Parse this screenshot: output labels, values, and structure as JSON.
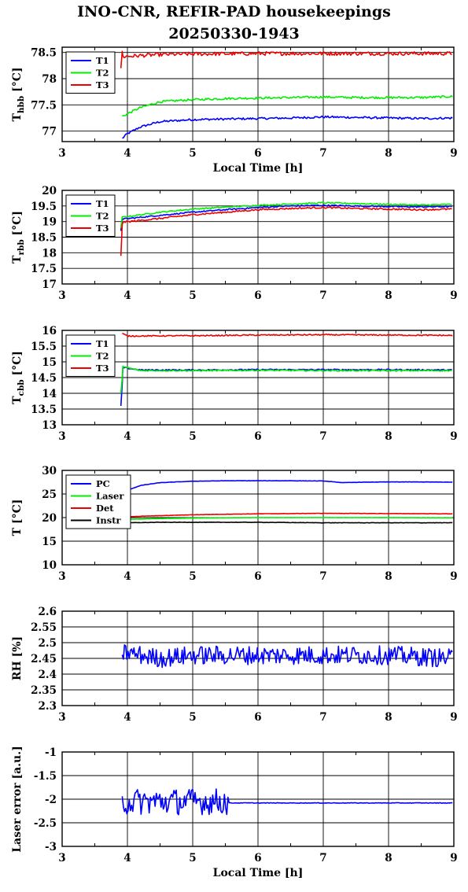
{
  "figure": {
    "title": "INO-CNR, REFIR-PAD housekeepings",
    "subtitle": "20250330-1943"
  },
  "chart_data": [
    {
      "type": "line",
      "ylabel_main": "T",
      "ylabel_sub": "hbb",
      "ylabel_unit": " [°C]",
      "xlabel": "Local Time [h]",
      "xlim": [
        3,
        9
      ],
      "ylim": [
        76.8,
        78.6
      ],
      "xticks": [
        "3",
        "4",
        "5",
        "6",
        "7",
        "8",
        "9"
      ],
      "yticks": [
        {
          "v": 77,
          "label": "77"
        },
        {
          "v": 77.5,
          "label": "77.5"
        },
        {
          "v": 78,
          "label": "78"
        },
        {
          "v": 78.5,
          "label": "78.5"
        }
      ],
      "grid": true,
      "legend": "top-left",
      "series": [
        {
          "name": "T1",
          "color": "#0000ff",
          "noise": 0.02,
          "spike": [],
          "points": [
            [
              3.92,
              76.86
            ],
            [
              4.0,
              76.95
            ],
            [
              4.2,
              77.08
            ],
            [
              4.5,
              77.18
            ],
            [
              5.0,
              77.22
            ],
            [
              5.5,
              77.23
            ],
            [
              6.0,
              77.24
            ],
            [
              6.5,
              77.25
            ],
            [
              7.0,
              77.27
            ],
            [
              7.5,
              77.26
            ],
            [
              8.0,
              77.25
            ],
            [
              8.5,
              77.24
            ],
            [
              8.98,
              77.25
            ]
          ]
        },
        {
          "name": "T2",
          "color": "#00ee00",
          "noise": 0.02,
          "spike": [],
          "points": [
            [
              3.92,
              77.28
            ],
            [
              4.0,
              77.33
            ],
            [
              4.2,
              77.45
            ],
            [
              4.5,
              77.56
            ],
            [
              5.0,
              77.6
            ],
            [
              5.5,
              77.62
            ],
            [
              6.0,
              77.63
            ],
            [
              6.5,
              77.64
            ],
            [
              7.0,
              77.65
            ],
            [
              7.5,
              77.64
            ],
            [
              8.0,
              77.64
            ],
            [
              8.5,
              77.64
            ],
            [
              8.98,
              77.66
            ]
          ]
        },
        {
          "name": "T3",
          "color": "#ee0000",
          "noise": 0.035,
          "spike": [
            [
              3.9,
              78.2
            ],
            [
              3.92,
              78.52
            ]
          ],
          "points": [
            [
              3.93,
              78.42
            ],
            [
              4.2,
              78.44
            ],
            [
              4.5,
              78.46
            ],
            [
              5.0,
              78.47
            ],
            [
              6.0,
              78.48
            ],
            [
              7.0,
              78.48
            ],
            [
              8.0,
              78.48
            ],
            [
              8.98,
              78.48
            ]
          ]
        }
      ]
    },
    {
      "type": "line",
      "ylabel_main": "T",
      "ylabel_sub": "rbb",
      "ylabel_unit": " [°C]",
      "xlabel": "",
      "xlim": [
        3,
        9
      ],
      "ylim": [
        17,
        20
      ],
      "xticks": [
        "3",
        "4",
        "5",
        "6",
        "7",
        "8",
        "9"
      ],
      "yticks": [
        {
          "v": 17,
          "label": "17"
        },
        {
          "v": 17.5,
          "label": "17.5"
        },
        {
          "v": 18,
          "label": "18"
        },
        {
          "v": 18.5,
          "label": "18.5"
        },
        {
          "v": 19,
          "label": "19"
        },
        {
          "v": 19.5,
          "label": "19.5"
        },
        {
          "v": 20,
          "label": "20"
        }
      ],
      "grid": true,
      "legend": "top-left",
      "series": [
        {
          "name": "T1",
          "color": "#0000ff",
          "noise": 0.02,
          "spike": [
            [
              3.9,
              18.7
            ],
            [
              3.92,
              19.1
            ]
          ],
          "points": [
            [
              3.93,
              19.08
            ],
            [
              4.5,
              19.2
            ],
            [
              5.0,
              19.3
            ],
            [
              5.5,
              19.38
            ],
            [
              6.0,
              19.45
            ],
            [
              6.5,
              19.5
            ],
            [
              7.0,
              19.52
            ],
            [
              7.5,
              19.5
            ],
            [
              8.0,
              19.48
            ],
            [
              8.5,
              19.47
            ],
            [
              8.98,
              19.48
            ]
          ]
        },
        {
          "name": "T2",
          "color": "#00ee00",
          "noise": 0.02,
          "spike": [
            [
              3.9,
              18.8
            ],
            [
              3.92,
              19.15
            ]
          ],
          "points": [
            [
              3.93,
              19.14
            ],
            [
              4.5,
              19.3
            ],
            [
              5.0,
              19.4
            ],
            [
              5.5,
              19.46
            ],
            [
              6.0,
              19.52
            ],
            [
              6.5,
              19.56
            ],
            [
              7.0,
              19.6
            ],
            [
              7.5,
              19.58
            ],
            [
              8.0,
              19.55
            ],
            [
              8.5,
              19.53
            ],
            [
              8.98,
              19.55
            ]
          ]
        },
        {
          "name": "T3",
          "color": "#ee0000",
          "noise": 0.025,
          "spike": [
            [
              3.9,
              17.9
            ],
            [
              3.92,
              18.9
            ]
          ],
          "points": [
            [
              3.93,
              18.98
            ],
            [
              4.5,
              19.1
            ],
            [
              5.0,
              19.22
            ],
            [
              5.5,
              19.3
            ],
            [
              6.0,
              19.38
            ],
            [
              6.5,
              19.42
            ],
            [
              7.0,
              19.45
            ],
            [
              7.5,
              19.42
            ],
            [
              8.0,
              19.4
            ],
            [
              8.5,
              19.38
            ],
            [
              8.98,
              19.4
            ]
          ]
        }
      ]
    },
    {
      "type": "line",
      "ylabel_main": "T",
      "ylabel_sub": "cbb",
      "ylabel_unit": " [°C]",
      "xlabel": "",
      "xlim": [
        3,
        9
      ],
      "ylim": [
        13,
        16
      ],
      "xticks": [
        "3",
        "4",
        "5",
        "6",
        "7",
        "8",
        "9"
      ],
      "yticks": [
        {
          "v": 13,
          "label": "13"
        },
        {
          "v": 13.5,
          "label": "13.5"
        },
        {
          "v": 14,
          "label": "14"
        },
        {
          "v": 14.5,
          "label": "14.5"
        },
        {
          "v": 15,
          "label": "15"
        },
        {
          "v": 15.5,
          "label": "15.5"
        },
        {
          "v": 16,
          "label": "16"
        }
      ],
      "grid": true,
      "legend": "top-left",
      "series": [
        {
          "name": "T1",
          "color": "#0000ff",
          "noise": 0.02,
          "spike": [
            [
              3.9,
              13.6
            ],
            [
              3.92,
              14.3
            ]
          ],
          "points": [
            [
              3.93,
              14.82
            ],
            [
              4.2,
              14.74
            ],
            [
              5.0,
              14.74
            ],
            [
              6.0,
              14.75
            ],
            [
              7.0,
              14.75
            ],
            [
              8.0,
              14.75
            ],
            [
              8.98,
              14.74
            ]
          ]
        },
        {
          "name": "T2",
          "color": "#00ee00",
          "noise": 0.02,
          "spike": [
            [
              3.9,
              14.0
            ],
            [
              3.92,
              14.5
            ]
          ],
          "points": [
            [
              3.93,
              14.85
            ],
            [
              4.2,
              14.72
            ],
            [
              5.0,
              14.72
            ],
            [
              6.0,
              14.73
            ],
            [
              7.0,
              14.72
            ],
            [
              8.0,
              14.72
            ],
            [
              8.98,
              14.72
            ]
          ]
        },
        {
          "name": "T3",
          "color": "#ee0000",
          "noise": 0.018,
          "spike": [],
          "points": [
            [
              3.92,
              15.9
            ],
            [
              4.0,
              15.82
            ],
            [
              5.0,
              15.83
            ],
            [
              6.0,
              15.85
            ],
            [
              7.0,
              15.86
            ],
            [
              8.0,
              15.85
            ],
            [
              8.98,
              15.84
            ]
          ]
        }
      ]
    },
    {
      "type": "line",
      "ylabel_main": "T [°C]",
      "ylabel_sub": "",
      "ylabel_unit": "",
      "xlabel": "",
      "xlim": [
        3,
        9
      ],
      "ylim": [
        10,
        30
      ],
      "xticks": [
        "3",
        "4",
        "5",
        "6",
        "7",
        "8",
        "9"
      ],
      "yticks": [
        {
          "v": 10,
          "label": "10"
        },
        {
          "v": 15,
          "label": "15"
        },
        {
          "v": 20,
          "label": "20"
        },
        {
          "v": 25,
          "label": "25"
        },
        {
          "v": 30,
          "label": "30"
        }
      ],
      "grid": true,
      "legend": "top-left",
      "series": [
        {
          "name": "PC",
          "color": "#0000ff",
          "noise": 0.03,
          "spike": [],
          "points": [
            [
              3.92,
              25.0
            ],
            [
              4.0,
              25.8
            ],
            [
              4.2,
              26.8
            ],
            [
              4.5,
              27.4
            ],
            [
              5.0,
              27.7
            ],
            [
              5.5,
              27.8
            ],
            [
              6.0,
              27.8
            ],
            [
              6.5,
              27.8
            ],
            [
              7.0,
              27.75
            ],
            [
              7.3,
              27.4
            ],
            [
              7.6,
              27.5
            ],
            [
              8.0,
              27.55
            ],
            [
              8.5,
              27.55
            ],
            [
              8.98,
              27.5
            ]
          ]
        },
        {
          "name": "Laser",
          "color": "#00ee00",
          "noise": 0.02,
          "spike": [],
          "points": [
            [
              3.92,
              19.6
            ],
            [
              4.5,
              19.8
            ],
            [
              5.0,
              19.9
            ],
            [
              6.0,
              20.0
            ],
            [
              7.0,
              20.0
            ],
            [
              8.0,
              20.0
            ],
            [
              8.98,
              19.95
            ]
          ]
        },
        {
          "name": "Det",
          "color": "#ee0000",
          "noise": 0.03,
          "spike": [],
          "points": [
            [
              3.92,
              20.0
            ],
            [
              4.0,
              20.2
            ],
            [
              4.5,
              20.4
            ],
            [
              5.0,
              20.6
            ],
            [
              5.5,
              20.7
            ],
            [
              6.0,
              20.8
            ],
            [
              7.0,
              20.9
            ],
            [
              8.0,
              20.85
            ],
            [
              8.98,
              20.8
            ]
          ]
        },
        {
          "name": "Instr",
          "color": "#000000",
          "noise": 0.04,
          "spike": [],
          "points": [
            [
              3.92,
              19.0
            ],
            [
              4.0,
              18.9
            ],
            [
              4.5,
              19.0
            ],
            [
              5.0,
              19.0
            ],
            [
              6.0,
              19.0
            ],
            [
              7.0,
              18.9
            ],
            [
              8.0,
              18.9
            ],
            [
              8.98,
              18.9
            ]
          ]
        }
      ]
    },
    {
      "type": "line",
      "ylabel_main": "RH [%]",
      "ylabel_sub": "",
      "ylabel_unit": "",
      "xlabel": "",
      "xlim": [
        3,
        9
      ],
      "ylim": [
        2.3,
        2.6
      ],
      "xticks": [
        "3",
        "4",
        "5",
        "6",
        "7",
        "8",
        "9"
      ],
      "yticks": [
        {
          "v": 2.3,
          "label": "2.3"
        },
        {
          "v": 2.35,
          "label": "2.35"
        },
        {
          "v": 2.4,
          "label": "2.4"
        },
        {
          "v": 2.45,
          "label": "2.45"
        },
        {
          "v": 2.5,
          "label": "2.5"
        },
        {
          "v": 2.55,
          "label": "2.55"
        },
        {
          "v": 2.6,
          "label": "2.6"
        }
      ],
      "grid": true,
      "legend": "",
      "series": [
        {
          "name": "",
          "color": "#0000ff",
          "noise": 0.03,
          "spike": [],
          "points": [
            [
              3.92,
              2.47
            ],
            [
              4.5,
              2.45
            ],
            [
              5.0,
              2.46
            ],
            [
              6.0,
              2.46
            ],
            [
              7.0,
              2.46
            ],
            [
              8.0,
              2.46
            ],
            [
              8.98,
              2.45
            ]
          ]
        }
      ]
    },
    {
      "type": "line",
      "ylabel_main": "Laser error [a.u.]",
      "ylabel_sub": "",
      "ylabel_unit": "",
      "xlabel": "Local Time [h]",
      "xlim": [
        3,
        9
      ],
      "ylim": [
        -3,
        -1
      ],
      "xticks": [
        "3",
        "4",
        "5",
        "6",
        "7",
        "8",
        "9"
      ],
      "yticks": [
        {
          "v": -3,
          "label": "-3"
        },
        {
          "v": -2.5,
          "label": "-2.5"
        },
        {
          "v": -2,
          "label": "-2"
        },
        {
          "v": -1.5,
          "label": "-1.5"
        },
        {
          "v": -1,
          "label": "-1"
        }
      ],
      "grid": true,
      "legend": "",
      "series": [
        {
          "name": "",
          "color": "#0000ff",
          "noise": 0.28,
          "noise_until": 5.55,
          "noise_after": 0.006,
          "spike": [],
          "points": [
            [
              3.92,
              -2.05
            ],
            [
              5.5,
              -2.05
            ],
            [
              5.55,
              -2.08
            ],
            [
              8.98,
              -2.08
            ]
          ]
        }
      ]
    }
  ]
}
